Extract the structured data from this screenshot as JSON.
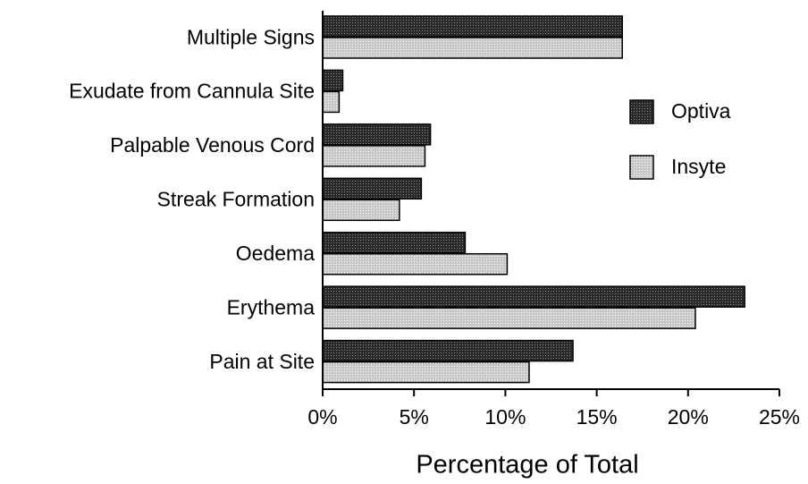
{
  "chart_data": {
    "type": "hbar",
    "categories": [
      "Multiple Signs",
      "Exudate from Cannula Site",
      "Palpable Venous Cord",
      "Streak Formation",
      "Oedema",
      "Erythema",
      "Pain at Site"
    ],
    "series": [
      {
        "name": "Optiva",
        "color": "#2a2a2a",
        "values": [
          16.4,
          1.1,
          5.9,
          5.4,
          7.8,
          23.1,
          13.7
        ]
      },
      {
        "name": "Insyte",
        "color": "#c8c8c8",
        "values": [
          16.4,
          0.9,
          5.6,
          4.2,
          10.1,
          20.4,
          11.3
        ]
      }
    ],
    "xlabel": "Percentage of Total",
    "xlim": [
      0,
      25
    ],
    "xticks": [
      {
        "value": 0,
        "label": "0%"
      },
      {
        "value": 5,
        "label": "5%"
      },
      {
        "value": 10,
        "label": "10%"
      },
      {
        "value": 15,
        "label": "15%"
      },
      {
        "value": 20,
        "label": "20%"
      },
      {
        "value": 25,
        "label": "25%"
      }
    ],
    "legend": "upper right"
  }
}
